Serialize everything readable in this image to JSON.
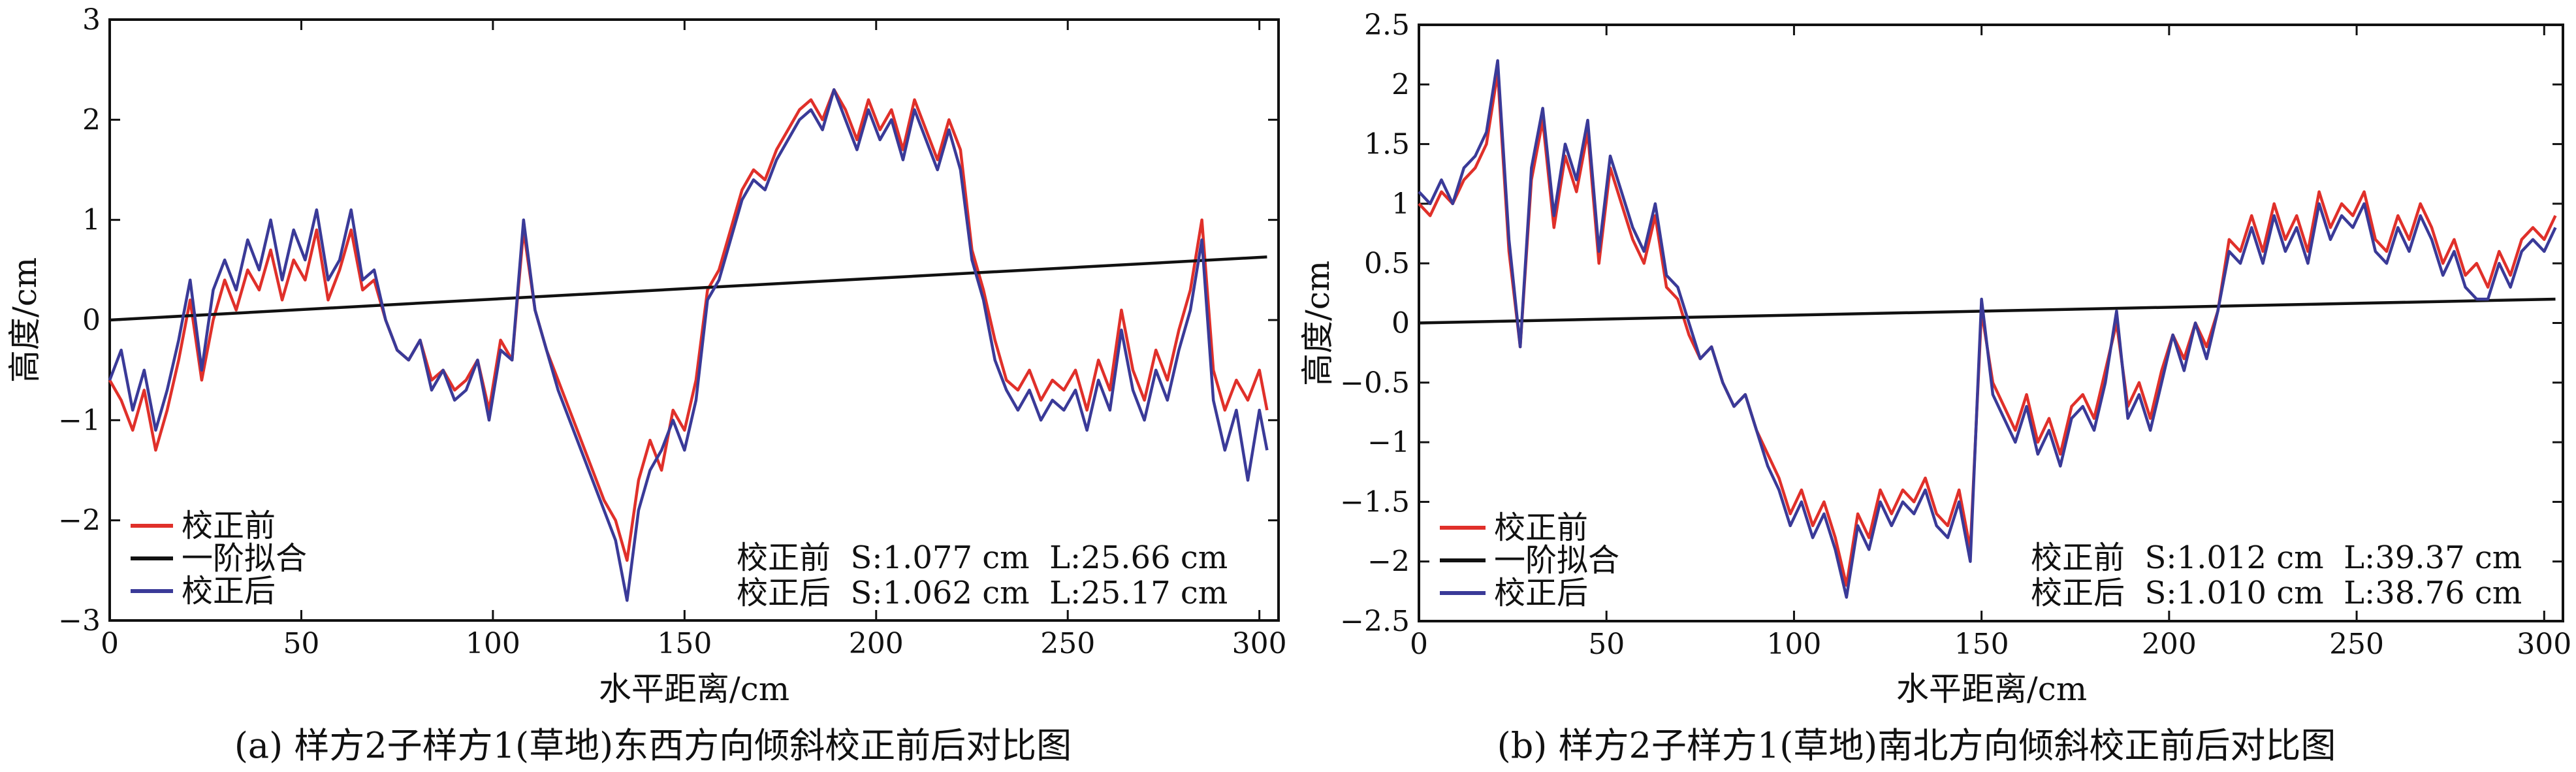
{
  "charts": [
    {
      "caption": "(a) 样方2子样方1(草地)东西方向倾斜校正前后对比图",
      "xlabel": "水平距离/cm",
      "ylabel": "高度/cm",
      "annotations": [
        "校正前  S:1.077 cm  L:25.66 cm",
        "校正后  S:1.062 cm  L:25.17 cm"
      ]
    },
    {
      "caption": "(b) 样方2子样方1(草地)南北方向倾斜校正前后对比图",
      "xlabel": "水平距离/cm",
      "ylabel": "高度/cm",
      "annotations": [
        "校正前  S:1.012 cm  L:39.37 cm",
        "校正后  S:1.010 cm  L:38.76 cm"
      ]
    }
  ],
  "chart_data": [
    {
      "type": "line",
      "xlim": [
        0,
        305
      ],
      "ylim": [
        -3,
        3
      ],
      "xticks": [
        0,
        50,
        100,
        150,
        200,
        250,
        300
      ],
      "yticks": [
        3,
        2,
        1,
        0,
        -1,
        -2,
        -3
      ],
      "xtick_labels": [
        "0",
        "50",
        "100",
        "150",
        "200",
        "250",
        "300"
      ],
      "ytick_labels": [
        "3",
        "2",
        "1",
        "0",
        "−1",
        "−2",
        "−3"
      ],
      "legend_position": "bottom-left",
      "series": [
        {
          "name": "校正前",
          "color": "#e0302a",
          "x": [
            0,
            3,
            6,
            9,
            12,
            15,
            18,
            21,
            24,
            27,
            30,
            33,
            36,
            39,
            42,
            45,
            48,
            51,
            54,
            57,
            60,
            63,
            66,
            69,
            72,
            75,
            78,
            81,
            84,
            87,
            90,
            93,
            96,
            99,
            102,
            105,
            108,
            111,
            114,
            117,
            120,
            123,
            126,
            129,
            132,
            135,
            138,
            141,
            144,
            147,
            150,
            153,
            156,
            159,
            162,
            165,
            168,
            171,
            174,
            177,
            180,
            183,
            186,
            189,
            192,
            195,
            198,
            201,
            204,
            207,
            210,
            213,
            216,
            219,
            222,
            225,
            228,
            231,
            234,
            237,
            240,
            243,
            246,
            249,
            252,
            255,
            258,
            261,
            264,
            267,
            270,
            273,
            276,
            279,
            282,
            285,
            288,
            291,
            294,
            297,
            300,
            302
          ],
          "y": [
            -0.6,
            -0.8,
            -1.1,
            -0.7,
            -1.3,
            -0.9,
            -0.4,
            0.2,
            -0.6,
            0.0,
            0.4,
            0.1,
            0.5,
            0.3,
            0.7,
            0.2,
            0.6,
            0.4,
            0.9,
            0.2,
            0.5,
            0.9,
            0.3,
            0.4,
            0.0,
            -0.3,
            -0.4,
            -0.2,
            -0.6,
            -0.5,
            -0.7,
            -0.6,
            -0.4,
            -0.9,
            -0.2,
            -0.4,
            0.9,
            0.1,
            -0.3,
            -0.6,
            -0.9,
            -1.2,
            -1.5,
            -1.8,
            -2.0,
            -2.4,
            -1.6,
            -1.2,
            -1.5,
            -0.9,
            -1.1,
            -0.6,
            0.3,
            0.5,
            0.9,
            1.3,
            1.5,
            1.4,
            1.7,
            1.9,
            2.1,
            2.2,
            2.0,
            2.3,
            2.1,
            1.8,
            2.2,
            1.9,
            2.1,
            1.7,
            2.2,
            1.9,
            1.6,
            2.0,
            1.7,
            0.7,
            0.3,
            -0.2,
            -0.6,
            -0.7,
            -0.5,
            -0.8,
            -0.6,
            -0.7,
            -0.5,
            -0.9,
            -0.4,
            -0.7,
            0.1,
            -0.5,
            -0.8,
            -0.3,
            -0.6,
            -0.1,
            0.3,
            1.0,
            -0.5,
            -0.9,
            -0.6,
            -0.8,
            -0.5,
            -0.9
          ]
        },
        {
          "name": "一阶拟合",
          "color": "#111111",
          "x": [
            0,
            302
          ],
          "y": [
            0.0,
            0.63
          ]
        },
        {
          "name": "校正后",
          "color": "#3a3a98",
          "x": [
            0,
            3,
            6,
            9,
            12,
            15,
            18,
            21,
            24,
            27,
            30,
            33,
            36,
            39,
            42,
            45,
            48,
            51,
            54,
            57,
            60,
            63,
            66,
            69,
            72,
            75,
            78,
            81,
            84,
            87,
            90,
            93,
            96,
            99,
            102,
            105,
            108,
            111,
            114,
            117,
            120,
            123,
            126,
            129,
            132,
            135,
            138,
            141,
            144,
            147,
            150,
            153,
            156,
            159,
            162,
            165,
            168,
            171,
            174,
            177,
            180,
            183,
            186,
            189,
            192,
            195,
            198,
            201,
            204,
            207,
            210,
            213,
            216,
            219,
            222,
            225,
            228,
            231,
            234,
            237,
            240,
            243,
            246,
            249,
            252,
            255,
            258,
            261,
            264,
            267,
            270,
            273,
            276,
            279,
            282,
            285,
            288,
            291,
            294,
            297,
            300,
            302
          ],
          "y": [
            -0.6,
            -0.3,
            -0.9,
            -0.5,
            -1.1,
            -0.7,
            -0.2,
            0.4,
            -0.5,
            0.3,
            0.6,
            0.3,
            0.8,
            0.5,
            1.0,
            0.4,
            0.9,
            0.6,
            1.1,
            0.4,
            0.6,
            1.1,
            0.4,
            0.5,
            0.0,
            -0.3,
            -0.4,
            -0.2,
            -0.7,
            -0.5,
            -0.8,
            -0.7,
            -0.4,
            -1.0,
            -0.3,
            -0.4,
            1.0,
            0.1,
            -0.3,
            -0.7,
            -1.0,
            -1.3,
            -1.6,
            -1.9,
            -2.2,
            -2.8,
            -1.9,
            -1.5,
            -1.3,
            -1.0,
            -1.3,
            -0.8,
            0.2,
            0.4,
            0.8,
            1.2,
            1.4,
            1.3,
            1.6,
            1.8,
            2.0,
            2.1,
            1.9,
            2.3,
            2.0,
            1.7,
            2.1,
            1.8,
            2.0,
            1.6,
            2.1,
            1.8,
            1.5,
            1.9,
            1.5,
            0.6,
            0.2,
            -0.4,
            -0.7,
            -0.9,
            -0.7,
            -1.0,
            -0.8,
            -0.9,
            -0.7,
            -1.1,
            -0.6,
            -0.9,
            -0.1,
            -0.7,
            -1.0,
            -0.5,
            -0.8,
            -0.3,
            0.1,
            0.8,
            -0.8,
            -1.3,
            -0.9,
            -1.6,
            -0.9,
            -1.3
          ]
        }
      ]
    },
    {
      "type": "line",
      "xlim": [
        0,
        305
      ],
      "ylim": [
        -2.5,
        2.5
      ],
      "xticks": [
        0,
        50,
        100,
        150,
        200,
        250,
        300
      ],
      "yticks": [
        2.5,
        2,
        1.5,
        1,
        0.5,
        0,
        -0.5,
        -1,
        -1.5,
        -2,
        -2.5
      ],
      "xtick_labels": [
        "0",
        "50",
        "100",
        "150",
        "200",
        "250",
        "300"
      ],
      "ytick_labels": [
        "2.5",
        "2",
        "1.5",
        "1",
        "0.5",
        "0",
        "−0.5",
        "−1",
        "−1.5",
        "−2",
        "−2.5"
      ],
      "legend_position": "bottom-left",
      "series": [
        {
          "name": "校正前",
          "color": "#e0302a",
          "x": [
            0,
            3,
            6,
            9,
            12,
            15,
            18,
            21,
            24,
            27,
            30,
            33,
            36,
            39,
            42,
            45,
            48,
            51,
            54,
            57,
            60,
            63,
            66,
            69,
            72,
            75,
            78,
            81,
            84,
            87,
            90,
            93,
            96,
            99,
            102,
            105,
            108,
            111,
            114,
            117,
            120,
            123,
            126,
            129,
            132,
            135,
            138,
            141,
            144,
            147,
            150,
            153,
            156,
            159,
            162,
            165,
            168,
            171,
            174,
            177,
            180,
            183,
            186,
            189,
            192,
            195,
            198,
            201,
            204,
            207,
            210,
            213,
            216,
            219,
            222,
            225,
            228,
            231,
            234,
            237,
            240,
            243,
            246,
            249,
            252,
            255,
            258,
            261,
            264,
            267,
            270,
            273,
            276,
            279,
            282,
            285,
            288,
            291,
            294,
            297,
            300,
            303
          ],
          "y": [
            1.0,
            0.9,
            1.1,
            1.0,
            1.2,
            1.3,
            1.5,
            2.1,
            0.6,
            -0.2,
            1.2,
            1.7,
            0.8,
            1.4,
            1.1,
            1.6,
            0.5,
            1.3,
            1.0,
            0.7,
            0.5,
            0.9,
            0.3,
            0.2,
            -0.1,
            -0.3,
            -0.2,
            -0.5,
            -0.7,
            -0.6,
            -0.9,
            -1.1,
            -1.3,
            -1.6,
            -1.4,
            -1.7,
            -1.5,
            -1.8,
            -2.2,
            -1.6,
            -1.8,
            -1.4,
            -1.6,
            -1.4,
            -1.5,
            -1.3,
            -1.6,
            -1.7,
            -1.4,
            -1.9,
            0.1,
            -0.5,
            -0.7,
            -0.9,
            -0.6,
            -1.0,
            -0.8,
            -1.1,
            -0.7,
            -0.6,
            -0.8,
            -0.4,
            0.0,
            -0.7,
            -0.5,
            -0.8,
            -0.4,
            -0.1,
            -0.3,
            0.0,
            -0.2,
            0.1,
            0.7,
            0.6,
            0.9,
            0.6,
            1.0,
            0.7,
            0.9,
            0.6,
            1.1,
            0.8,
            1.0,
            0.9,
            1.1,
            0.7,
            0.6,
            0.9,
            0.7,
            1.0,
            0.8,
            0.5,
            0.7,
            0.4,
            0.5,
            0.3,
            0.6,
            0.4,
            0.7,
            0.8,
            0.7,
            0.9
          ]
        },
        {
          "name": "一阶拟合",
          "color": "#111111",
          "x": [
            0,
            303
          ],
          "y": [
            0.0,
            0.2
          ]
        },
        {
          "name": "校正后",
          "color": "#3a3a98",
          "x": [
            0,
            3,
            6,
            9,
            12,
            15,
            18,
            21,
            24,
            27,
            30,
            33,
            36,
            39,
            42,
            45,
            48,
            51,
            54,
            57,
            60,
            63,
            66,
            69,
            72,
            75,
            78,
            81,
            84,
            87,
            90,
            93,
            96,
            99,
            102,
            105,
            108,
            111,
            114,
            117,
            120,
            123,
            126,
            129,
            132,
            135,
            138,
            141,
            144,
            147,
            150,
            153,
            156,
            159,
            162,
            165,
            168,
            171,
            174,
            177,
            180,
            183,
            186,
            189,
            192,
            195,
            198,
            201,
            204,
            207,
            210,
            213,
            216,
            219,
            222,
            225,
            228,
            231,
            234,
            237,
            240,
            243,
            246,
            249,
            252,
            255,
            258,
            261,
            264,
            267,
            270,
            273,
            276,
            279,
            282,
            285,
            288,
            291,
            294,
            297,
            300,
            303
          ],
          "y": [
            1.1,
            1.0,
            1.2,
            1.0,
            1.3,
            1.4,
            1.6,
            2.2,
            0.7,
            -0.2,
            1.3,
            1.8,
            0.9,
            1.5,
            1.2,
            1.7,
            0.6,
            1.4,
            1.1,
            0.8,
            0.6,
            1.0,
            0.4,
            0.3,
            0.0,
            -0.3,
            -0.2,
            -0.5,
            -0.7,
            -0.6,
            -0.9,
            -1.2,
            -1.4,
            -1.7,
            -1.5,
            -1.8,
            -1.6,
            -1.9,
            -2.3,
            -1.7,
            -1.9,
            -1.5,
            -1.7,
            -1.5,
            -1.6,
            -1.4,
            -1.7,
            -1.8,
            -1.5,
            -2.0,
            0.2,
            -0.6,
            -0.8,
            -1.0,
            -0.7,
            -1.1,
            -0.9,
            -1.2,
            -0.8,
            -0.7,
            -0.9,
            -0.5,
            0.1,
            -0.8,
            -0.6,
            -0.9,
            -0.5,
            -0.1,
            -0.4,
            0.0,
            -0.3,
            0.1,
            0.6,
            0.5,
            0.8,
            0.5,
            0.9,
            0.6,
            0.8,
            0.5,
            1.0,
            0.7,
            0.9,
            0.8,
            1.0,
            0.6,
            0.5,
            0.8,
            0.6,
            0.9,
            0.7,
            0.4,
            0.6,
            0.3,
            0.2,
            0.2,
            0.5,
            0.3,
            0.6,
            0.7,
            0.6,
            0.8
          ]
        }
      ]
    }
  ]
}
